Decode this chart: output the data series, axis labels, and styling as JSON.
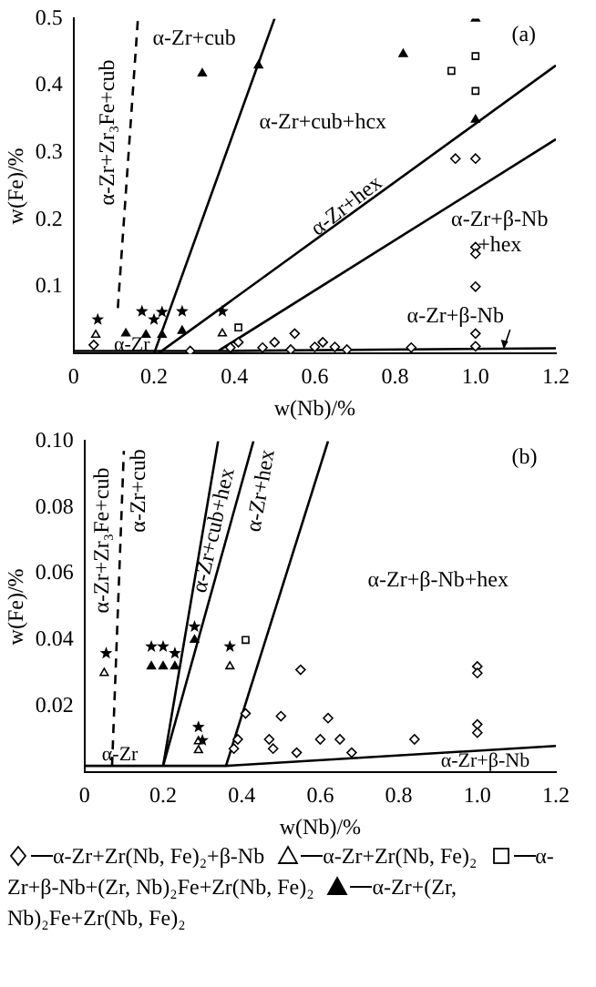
{
  "chart_data": [
    {
      "type": "scatter",
      "xlabel": "w(Nb)/%",
      "ylabel": "w(Fe)/%",
      "xlim": [
        0,
        1.2
      ],
      "ylim": [
        0,
        0.5
      ],
      "xticks": [
        0,
        0.2,
        0.4,
        0.6,
        0.8,
        {
          "value": 1,
          "label": "1.0"
        },
        1.2
      ],
      "yticks": [
        0.1,
        0.2,
        0.3,
        0.4,
        0.5
      ],
      "grid": false,
      "legend": false,
      "annotations": [
        "(a)",
        "α-Zr+cub",
        "α-Zr+Zr₃Fe+cub",
        "α-Zr+cub+hcx",
        "α-Zr+hex",
        "α-Zr+β-Nb\n+hex",
        "α-Zr+β-Nb",
        "α-Zr"
      ],
      "series": [
        {
          "type": "scatter",
          "marker": "diamond",
          "color": "#ffffff",
          "x": [
            0.05,
            0.95,
            1.0,
            1.0,
            1.0,
            1.0,
            1.0,
            1.0,
            0.29,
            0.39,
            0.41,
            0.47,
            0.5,
            0.55,
            0.54,
            0.6,
            0.62,
            0.65,
            0.68,
            0.84
          ],
          "values": [
            0.013,
            0.291,
            0.291,
            0.159,
            0.149,
            0.1,
            0.03,
            0.011,
            0.004,
            0.009,
            0.017,
            0.009,
            0.017,
            0.03,
            0.006,
            0.01,
            0.017,
            0.01,
            0.006,
            0.009
          ]
        },
        {
          "type": "scatter",
          "marker": "triangle",
          "color": "#ffffff",
          "x": [
            0.055,
            0.37
          ],
          "values": [
            0.028,
            0.03
          ]
        },
        {
          "type": "scatter",
          "marker": "square",
          "color": "#ffffff",
          "x": [
            0.41,
            0.94,
            1.0,
            1.0
          ],
          "values": [
            0.039,
            0.422,
            0.444,
            0.392
          ]
        },
        {
          "type": "scatter",
          "marker": "triangle",
          "color": "#000000",
          "x": [
            0.32,
            0.46,
            0.82,
            1.0,
            1.0,
            0.13,
            0.18,
            0.22,
            0.27
          ],
          "values": [
            0.418,
            0.43,
            0.447,
            0.5,
            0.349,
            0.03,
            0.028,
            0.028,
            0.034
          ]
        },
        {
          "type": "scatter",
          "marker": "star",
          "color": "#000000",
          "x": [
            0.06,
            0.17,
            0.2,
            0.22,
            0.27,
            0.37
          ],
          "values": [
            0.051,
            0.063,
            0.051,
            0.062,
            0.063,
            0.063
          ]
        },
        {
          "type": "line",
          "line_style": "solid",
          "color": "#000000",
          "x": [
            0.2,
            0.5
          ],
          "values": [
            0,
            0.5
          ]
        },
        {
          "type": "line",
          "line_style": "solid",
          "color": "#000000",
          "x": [
            0.21,
            1.2
          ],
          "values": [
            0,
            0.43
          ]
        },
        {
          "type": "line",
          "line_style": "solid",
          "color": "#000000",
          "x": [
            0.36,
            1.2
          ],
          "values": [
            0.004,
            0.32
          ]
        },
        {
          "type": "line",
          "line_style": "solid",
          "color": "#000000",
          "x": [
            0,
            0.36,
            1.2
          ],
          "values": [
            0.004,
            0.004,
            0.008
          ]
        },
        {
          "type": "line",
          "line_style": "dashed",
          "color": "#000000",
          "x": [
            0.11,
            0.16
          ],
          "values": [
            0.068,
            0.5
          ]
        }
      ]
    },
    {
      "type": "scatter",
      "xlabel": "w(Nb)/%",
      "ylabel": "w(Fe)/%",
      "xlim": [
        0,
        1.2
      ],
      "ylim": [
        0,
        0.1
      ],
      "xticks": [
        0,
        0.2,
        0.4,
        0.6,
        0.8,
        {
          "value": 1,
          "label": "1.0"
        },
        1.2
      ],
      "yticks": [
        0.02,
        0.04,
        0.06,
        0.08,
        {
          "value": 0.1,
          "label": "0.10"
        }
      ],
      "grid": false,
      "legend": "bottom",
      "annotations": [
        "(b)",
        "α-Zr+Zr₃Fe+cub",
        "α-Zr+cub",
        "α-Zr+cub+hex",
        "α-Zr+hex",
        "α-Zr+β-Nb+hex",
        "α-Zr+β-Nb",
        "α-Zr"
      ],
      "series": [
        {
          "name": "α-Zr+Zr(Nb, Fe)₂+β-Nb",
          "type": "scatter",
          "marker": "diamond",
          "color": "#ffffff",
          "x": [
            0.55,
            0.41,
            0.5,
            0.62,
            0.39,
            0.38,
            0.47,
            0.48,
            0.54,
            0.6,
            0.65,
            0.68,
            0.84,
            1.0,
            1.0,
            1.0,
            1.0
          ],
          "values": [
            0.031,
            0.0178,
            0.017,
            0.0164,
            0.01,
            0.0072,
            0.01,
            0.0072,
            0.006,
            0.01,
            0.01,
            0.006,
            0.01,
            0.032,
            0.03,
            0.0145,
            0.012
          ]
        },
        {
          "name": "α-Zr+Zr(Nb, Fe)₂",
          "type": "scatter",
          "marker": "triangle",
          "color": "#ffffff",
          "x": [
            0.05,
            0.37,
            0.29,
            0.29
          ],
          "values": [
            0.03,
            0.032,
            0.0067,
            0.0094
          ]
        },
        {
          "name": "α-Zr+β-Nb+(Zr, Nb)₂Fe+Zr(Nb, Fe)₂",
          "type": "scatter",
          "marker": "square",
          "color": "#ffffff",
          "x": [
            0.41
          ],
          "values": [
            0.04
          ]
        },
        {
          "name": "α-Zr+(Zr, Nb)₂Fe+Zr(Nb, Fe)₂",
          "type": "scatter",
          "marker": "triangle",
          "color": "#000000",
          "x": [
            0.17,
            0.2,
            0.23,
            0.28
          ],
          "values": [
            0.032,
            0.032,
            0.032,
            0.04
          ]
        },
        {
          "type": "scatter",
          "marker": "star",
          "color": "#000000",
          "x": [
            0.055,
            0.17,
            0.2,
            0.23,
            0.28,
            0.37,
            0.29,
            0.3
          ],
          "values": [
            0.036,
            0.038,
            0.038,
            0.036,
            0.044,
            0.038,
            0.0137,
            0.0097
          ]
        },
        {
          "type": "line",
          "line_style": "solid",
          "color": "#000000",
          "x": [
            0.2,
            0.34
          ],
          "values": [
            0.002,
            0.1
          ]
        },
        {
          "type": "line",
          "line_style": "solid",
          "color": "#000000",
          "x": [
            0.2,
            0.43
          ],
          "values": [
            0.002,
            0.1
          ]
        },
        {
          "type": "line",
          "line_style": "solid",
          "color": "#000000",
          "x": [
            0.36,
            0.62
          ],
          "values": [
            0.002,
            0.1
          ]
        },
        {
          "type": "line",
          "line_style": "solid",
          "color": "#000000",
          "x": [
            0,
            0.36,
            1.2
          ],
          "values": [
            0.002,
            0.002,
            0.008
          ]
        },
        {
          "type": "line",
          "line_style": "dashed",
          "color": "#000000",
          "x": [
            0.07,
            0.1
          ],
          "values": [
            0.002,
            0.097
          ]
        }
      ]
    }
  ]
}
